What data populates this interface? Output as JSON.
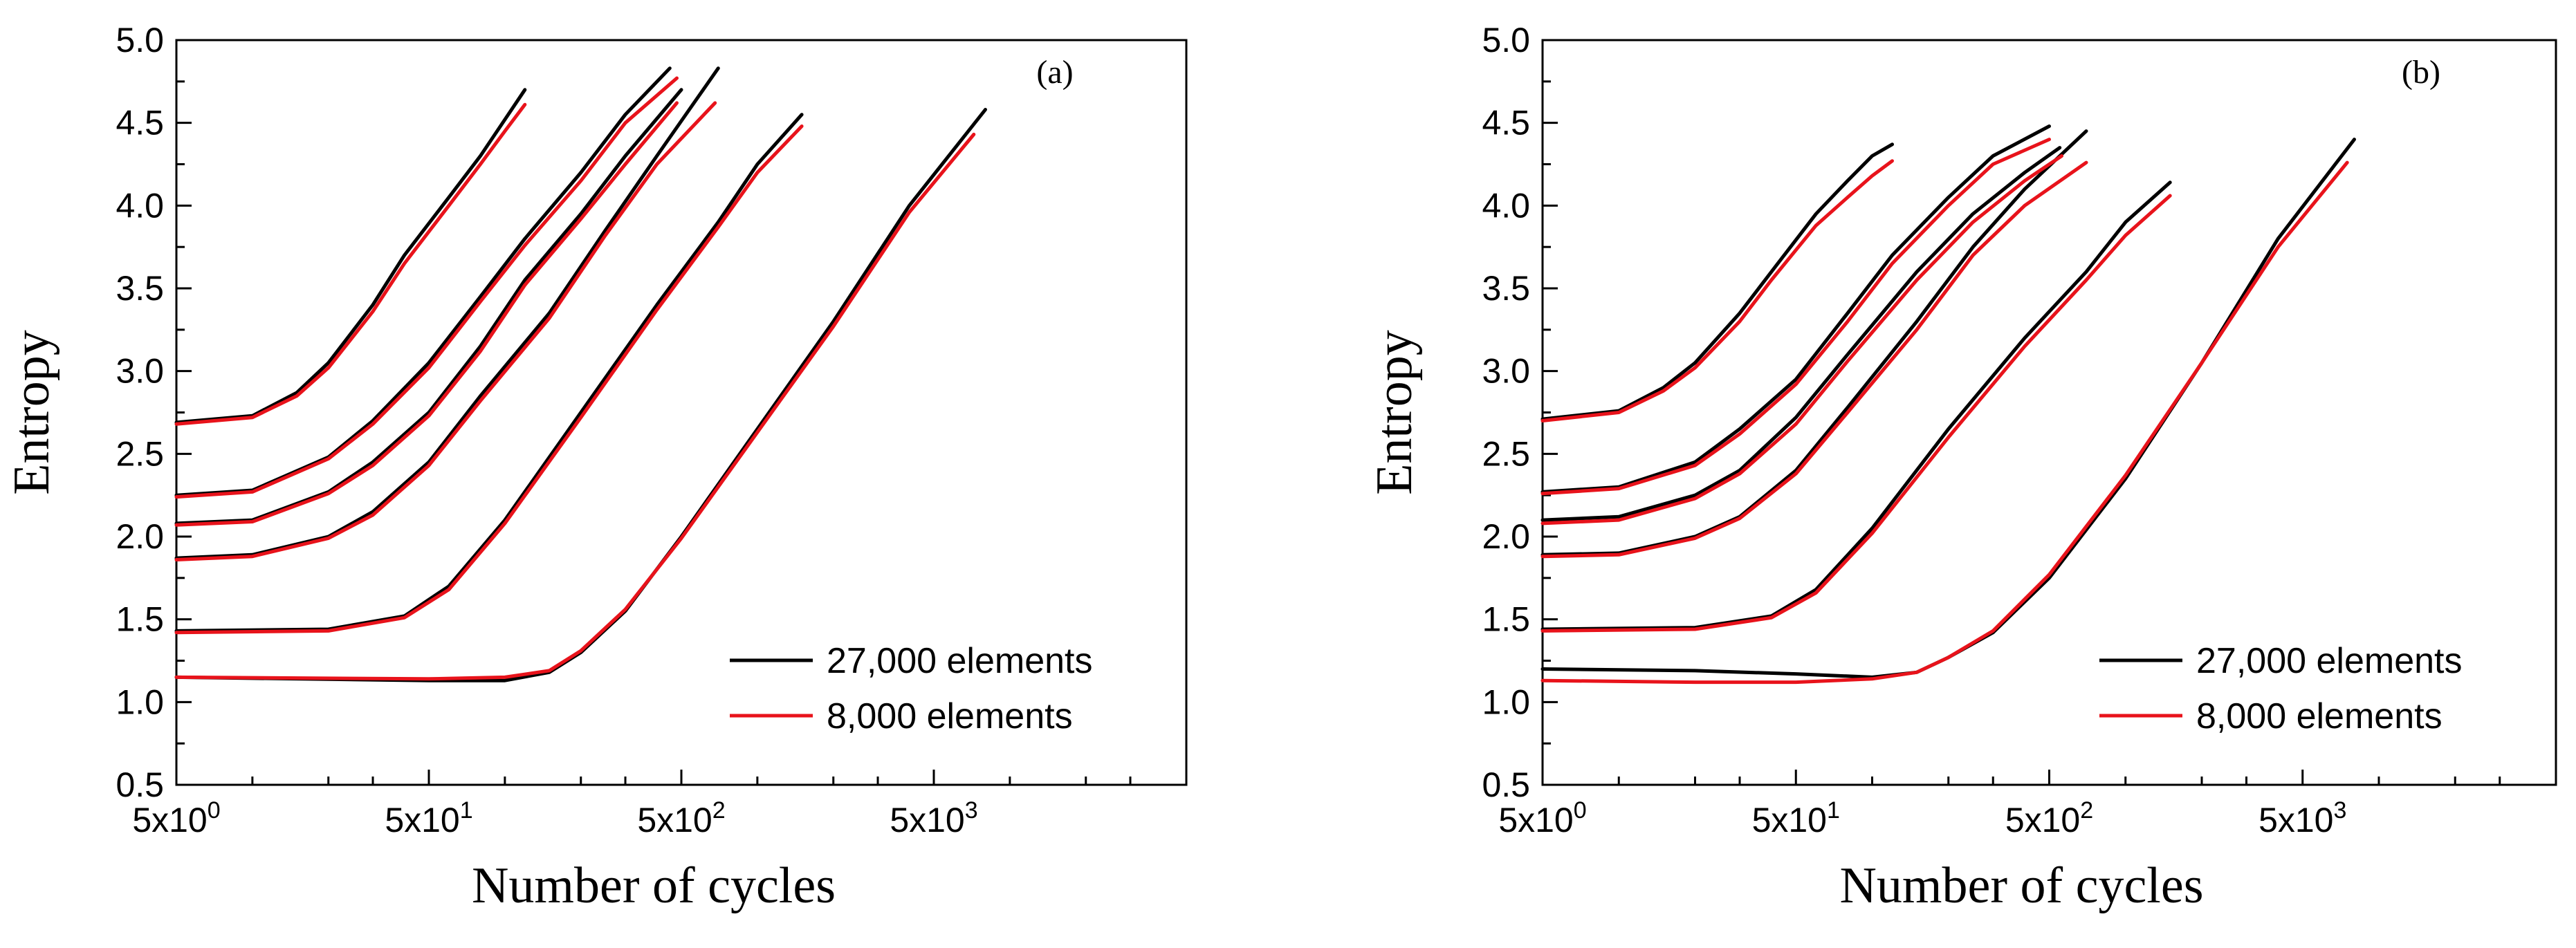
{
  "chart_data": [
    {
      "type": "line",
      "panel_label": "(a)",
      "xlabel": "Number of cycles",
      "ylabel": "Entropy",
      "xscale": "log",
      "xlim": [
        5,
        50000
      ],
      "ylim": [
        0.5,
        5.0
      ],
      "x_ticks": [
        5,
        50,
        500,
        5000
      ],
      "x_tick_labels": [
        {
          "base": "5x10",
          "exp": "0"
        },
        {
          "base": "5x10",
          "exp": "1"
        },
        {
          "base": "5x10",
          "exp": "2"
        },
        {
          "base": "5x10",
          "exp": "3"
        }
      ],
      "y_ticks": [
        0.5,
        1.0,
        1.5,
        2.0,
        2.5,
        3.0,
        3.5,
        4.0,
        4.5,
        5.0
      ],
      "y_tick_labels": [
        "0.5",
        "1.0",
        "1.5",
        "2.0",
        "2.5",
        "3.0",
        "3.5",
        "4.0",
        "4.5",
        "5.0"
      ],
      "legend": {
        "position": "bottom-right",
        "entries": [
          {
            "label": "27,000 elements",
            "color": "#000000"
          },
          {
            "label": "8,000 elements",
            "color": "#e8131b"
          }
        ]
      },
      "series": [
        {
          "name": "27,000 elements",
          "color": "#000000",
          "curves": [
            {
              "x": [
                5,
                10,
                15,
                20,
                30,
                40,
                60,
                80,
                100,
                120
              ],
              "y": [
                2.69,
                2.73,
                2.87,
                3.05,
                3.4,
                3.7,
                4.05,
                4.3,
                4.52,
                4.7
              ]
            },
            {
              "x": [
                5,
                10,
                20,
                30,
                50,
                80,
                120,
                200,
                300,
                450
              ],
              "y": [
                2.25,
                2.28,
                2.48,
                2.7,
                3.05,
                3.45,
                3.8,
                4.2,
                4.55,
                4.83
              ]
            },
            {
              "x": [
                5,
                10,
                20,
                30,
                50,
                80,
                120,
                200,
                300,
                500
              ],
              "y": [
                2.08,
                2.1,
                2.27,
                2.45,
                2.75,
                3.15,
                3.55,
                3.95,
                4.3,
                4.7
              ]
            },
            {
              "x": [
                5,
                10,
                20,
                30,
                50,
                80,
                150,
                250,
                400,
                700
              ],
              "y": [
                1.87,
                1.89,
                2.0,
                2.15,
                2.45,
                2.85,
                3.35,
                3.85,
                4.3,
                4.83
              ]
            },
            {
              "x": [
                5,
                20,
                40,
                60,
                100,
                200,
                400,
                700,
                1000,
                1500
              ],
              "y": [
                1.43,
                1.44,
                1.52,
                1.7,
                2.1,
                2.75,
                3.4,
                3.9,
                4.25,
                4.55
              ]
            },
            {
              "x": [
                5,
                50,
                100,
                150,
                200,
                300,
                500,
                1000,
                2000,
                4000,
                8000
              ],
              "y": [
                1.15,
                1.13,
                1.13,
                1.18,
                1.3,
                1.55,
                2.0,
                2.65,
                3.3,
                4.0,
                4.58
              ]
            }
          ]
        },
        {
          "name": "8,000 elements",
          "color": "#e8131b",
          "curves": [
            {
              "x": [
                5,
                10,
                15,
                20,
                30,
                40,
                60,
                80,
                100,
                120
              ],
              "y": [
                2.68,
                2.72,
                2.85,
                3.02,
                3.36,
                3.65,
                4.0,
                4.25,
                4.45,
                4.61
              ]
            },
            {
              "x": [
                5,
                10,
                20,
                30,
                50,
                80,
                120,
                200,
                300,
                480
              ],
              "y": [
                2.24,
                2.27,
                2.47,
                2.68,
                3.02,
                3.42,
                3.76,
                4.15,
                4.5,
                4.77
              ]
            },
            {
              "x": [
                5,
                10,
                20,
                30,
                50,
                80,
                120,
                200,
                300,
                480
              ],
              "y": [
                2.07,
                2.09,
                2.26,
                2.43,
                2.73,
                3.12,
                3.52,
                3.92,
                4.25,
                4.62
              ]
            },
            {
              "x": [
                5,
                10,
                20,
                30,
                50,
                80,
                150,
                250,
                400,
                680
              ],
              "y": [
                1.86,
                1.88,
                1.99,
                2.13,
                2.43,
                2.82,
                3.32,
                3.82,
                4.25,
                4.62
              ]
            },
            {
              "x": [
                5,
                20,
                40,
                60,
                100,
                200,
                400,
                700,
                1000,
                1500
              ],
              "y": [
                1.42,
                1.43,
                1.51,
                1.68,
                2.08,
                2.72,
                3.37,
                3.87,
                4.2,
                4.48
              ]
            },
            {
              "x": [
                5,
                50,
                100,
                150,
                200,
                300,
                500,
                1000,
                2000,
                4000,
                7200
              ],
              "y": [
                1.15,
                1.14,
                1.15,
                1.19,
                1.31,
                1.56,
                1.99,
                2.63,
                3.27,
                3.96,
                4.43
              ]
            }
          ]
        }
      ]
    },
    {
      "type": "line",
      "panel_label": "(b)",
      "xlabel": "Number of cycles",
      "ylabel": "Entropy",
      "xscale": "log",
      "xlim": [
        5,
        50000
      ],
      "ylim": [
        0.5,
        5.0
      ],
      "x_ticks": [
        5,
        50,
        500,
        5000
      ],
      "x_tick_labels": [
        {
          "base": "5x10",
          "exp": "0"
        },
        {
          "base": "5x10",
          "exp": "1"
        },
        {
          "base": "5x10",
          "exp": "2"
        },
        {
          "base": "5x10",
          "exp": "3"
        }
      ],
      "y_ticks": [
        0.5,
        1.0,
        1.5,
        2.0,
        2.5,
        3.0,
        3.5,
        4.0,
        4.5,
        5.0
      ],
      "y_tick_labels": [
        "0.5",
        "1.0",
        "1.5",
        "2.0",
        "2.5",
        "3.0",
        "3.5",
        "4.0",
        "4.5",
        "5.0"
      ],
      "legend": {
        "position": "bottom-right",
        "entries": [
          {
            "label": "27,000 elements",
            "color": "#000000"
          },
          {
            "label": "8,000 elements",
            "color": "#e8131b"
          }
        ]
      },
      "series": [
        {
          "name": "27,000 elements",
          "color": "#000000",
          "curves": [
            {
              "x": [
                5,
                10,
                15,
                20,
                30,
                40,
                60,
                80,
                100,
                120
              ],
              "y": [
                2.71,
                2.76,
                2.9,
                3.05,
                3.35,
                3.6,
                3.95,
                4.15,
                4.3,
                4.37
              ]
            },
            {
              "x": [
                5,
                10,
                20,
                30,
                50,
                80,
                120,
                200,
                300,
                500
              ],
              "y": [
                2.27,
                2.3,
                2.45,
                2.65,
                2.95,
                3.35,
                3.7,
                4.05,
                4.3,
                4.48
              ]
            },
            {
              "x": [
                5,
                10,
                20,
                30,
                50,
                80,
                150,
                250,
                400,
                550
              ],
              "y": [
                2.1,
                2.12,
                2.25,
                2.4,
                2.72,
                3.1,
                3.6,
                3.95,
                4.2,
                4.35
              ]
            },
            {
              "x": [
                5,
                10,
                20,
                30,
                50,
                80,
                150,
                250,
                400,
                700
              ],
              "y": [
                1.89,
                1.9,
                2.0,
                2.12,
                2.4,
                2.78,
                3.3,
                3.75,
                4.1,
                4.45
              ]
            },
            {
              "x": [
                5,
                20,
                40,
                60,
                100,
                200,
                400,
                700,
                1000,
                1500
              ],
              "y": [
                1.44,
                1.45,
                1.52,
                1.68,
                2.05,
                2.65,
                3.2,
                3.6,
                3.9,
                4.14
              ]
            },
            {
              "x": [
                5,
                20,
                50,
                100,
                150,
                200,
                300,
                500,
                1000,
                2000,
                4000,
                8000
              ],
              "y": [
                1.2,
                1.19,
                1.17,
                1.15,
                1.18,
                1.27,
                1.42,
                1.75,
                2.35,
                3.05,
                3.8,
                4.4
              ]
            }
          ]
        },
        {
          "name": "8,000 elements",
          "color": "#e8131b",
          "curves": [
            {
              "x": [
                5,
                10,
                15,
                20,
                30,
                40,
                60,
                80,
                100,
                120
              ],
              "y": [
                2.7,
                2.75,
                2.88,
                3.02,
                3.3,
                3.55,
                3.88,
                4.05,
                4.18,
                4.27
              ]
            },
            {
              "x": [
                5,
                10,
                20,
                30,
                50,
                80,
                120,
                200,
                300,
                500
              ],
              "y": [
                2.26,
                2.29,
                2.43,
                2.62,
                2.92,
                3.3,
                3.65,
                4.0,
                4.25,
                4.4
              ]
            },
            {
              "x": [
                5,
                10,
                20,
                30,
                50,
                80,
                150,
                250,
                400,
                560
              ],
              "y": [
                2.08,
                2.1,
                2.23,
                2.38,
                2.68,
                3.06,
                3.55,
                3.9,
                4.15,
                4.3
              ]
            },
            {
              "x": [
                5,
                10,
                20,
                30,
                50,
                80,
                150,
                250,
                400,
                700
              ],
              "y": [
                1.88,
                1.89,
                1.99,
                2.11,
                2.38,
                2.75,
                3.25,
                3.7,
                4.0,
                4.26
              ]
            },
            {
              "x": [
                5,
                20,
                40,
                60,
                100,
                200,
                400,
                700,
                1000,
                1500
              ],
              "y": [
                1.43,
                1.44,
                1.51,
                1.66,
                2.02,
                2.6,
                3.15,
                3.55,
                3.82,
                4.06
              ]
            },
            {
              "x": [
                5,
                20,
                50,
                100,
                150,
                200,
                300,
                500,
                1000,
                2000,
                4000,
                7500
              ],
              "y": [
                1.13,
                1.12,
                1.12,
                1.14,
                1.18,
                1.27,
                1.43,
                1.77,
                2.37,
                3.05,
                3.75,
                4.26
              ]
            }
          ]
        }
      ]
    }
  ]
}
